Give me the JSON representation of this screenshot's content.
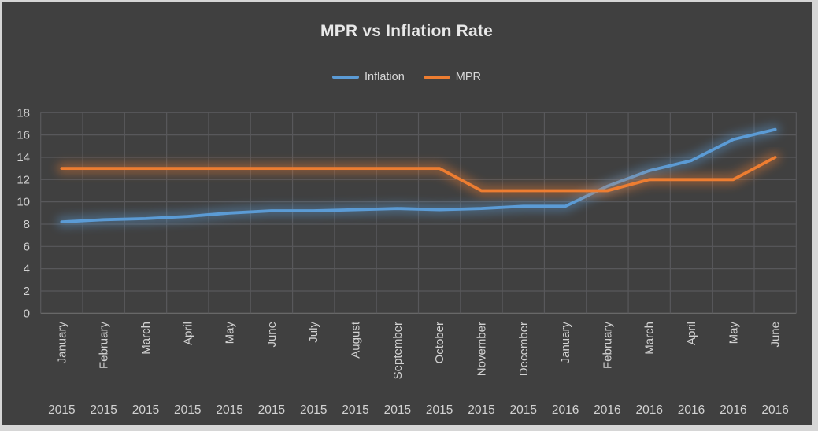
{
  "chart_data": {
    "type": "line",
    "title": "MPR vs Inflation Rate",
    "legend_position": "top",
    "grid": true,
    "ylim": [
      0,
      18
    ],
    "y_ticks": [
      0,
      2,
      4,
      6,
      8,
      10,
      12,
      14,
      16,
      18
    ],
    "categories": [
      {
        "month": "January",
        "year": "2015"
      },
      {
        "month": "February",
        "year": "2015"
      },
      {
        "month": "March",
        "year": "2015"
      },
      {
        "month": "April",
        "year": "2015"
      },
      {
        "month": "May",
        "year": "2015"
      },
      {
        "month": "June",
        "year": "2015"
      },
      {
        "month": "July",
        "year": "2015"
      },
      {
        "month": "August",
        "year": "2015"
      },
      {
        "month": "September",
        "year": "2015"
      },
      {
        "month": "October",
        "year": "2015"
      },
      {
        "month": "November",
        "year": "2015"
      },
      {
        "month": "December",
        "year": "2015"
      },
      {
        "month": "January",
        "year": "2016"
      },
      {
        "month": "February",
        "year": "2016"
      },
      {
        "month": "March",
        "year": "2016"
      },
      {
        "month": "April",
        "year": "2016"
      },
      {
        "month": "May",
        "year": "2016"
      },
      {
        "month": "June",
        "year": "2016"
      }
    ],
    "series": [
      {
        "name": "Inflation",
        "color": "#5B9BD5",
        "values": [
          8.2,
          8.4,
          8.5,
          8.7,
          9.0,
          9.2,
          9.2,
          9.3,
          9.4,
          9.3,
          9.4,
          9.6,
          9.6,
          11.4,
          12.8,
          13.7,
          15.6,
          16.5
        ]
      },
      {
        "name": "MPR",
        "color": "#ED7D31",
        "values": [
          13,
          13,
          13,
          13,
          13,
          13,
          13,
          13,
          13,
          13,
          11,
          11,
          11,
          11,
          12,
          12,
          12,
          14
        ]
      }
    ]
  },
  "colors": {
    "page_background": "#D6D6D6",
    "panel_background": "#404040",
    "gridline": "#58585B",
    "axis_line": "#6E6E6E",
    "tick_text": "#D2D2D2",
    "title_text": "#E8E8E8",
    "legend_text": "#D9D9D9"
  }
}
